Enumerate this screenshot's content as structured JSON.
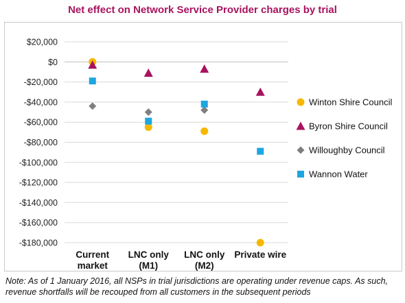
{
  "chart_data": {
    "type": "scatter",
    "title": "Net effect on Network Service Provider charges by trial",
    "categories": [
      [
        "Current",
        "market"
      ],
      [
        "LNC only",
        "(M1)"
      ],
      [
        "LNC only",
        "(M2)"
      ],
      [
        "Private wire"
      ]
    ],
    "xlabel": "",
    "ylabel": "",
    "ylim": [
      -180000,
      20000
    ],
    "yticks": [
      20000,
      0,
      -20000,
      -40000,
      -60000,
      -80000,
      -100000,
      -120000,
      -140000,
      -160000,
      -180000
    ],
    "ytick_labels": [
      "$20,000",
      "$0",
      "-$20,000",
      "-$40,000",
      "-$60,000",
      "-$80,000",
      "-$100,000",
      "-$120,000",
      "-$140,000",
      "-$160,000",
      "-$180,000"
    ],
    "grid": true,
    "legend_position": "right",
    "series": [
      {
        "name": "Winton Shire Council",
        "marker": "circle",
        "color": "#f5b800",
        "values": [
          0,
          -65000,
          -69000,
          -180000
        ]
      },
      {
        "name": "Byron Shire Council",
        "marker": "triangle",
        "color": "#a8135f",
        "values": [
          -3000,
          -11000,
          -7000,
          -30000
        ]
      },
      {
        "name": "Willoughby Council",
        "marker": "diamond",
        "color": "#7f7f7f",
        "values": [
          -44000,
          -50000,
          -48000,
          null
        ]
      },
      {
        "name": "Wannon Water",
        "marker": "square",
        "color": "#1ea6e0",
        "values": [
          -19000,
          -59000,
          -42000,
          -89000
        ]
      }
    ]
  },
  "note_lines": [
    "Note: As of 1 January 2016, all NSPs in trial jurisdictions are operating under revenue caps. As such,",
    "revenue shortfalls will be recouped from all customers in the subsequent periods"
  ]
}
